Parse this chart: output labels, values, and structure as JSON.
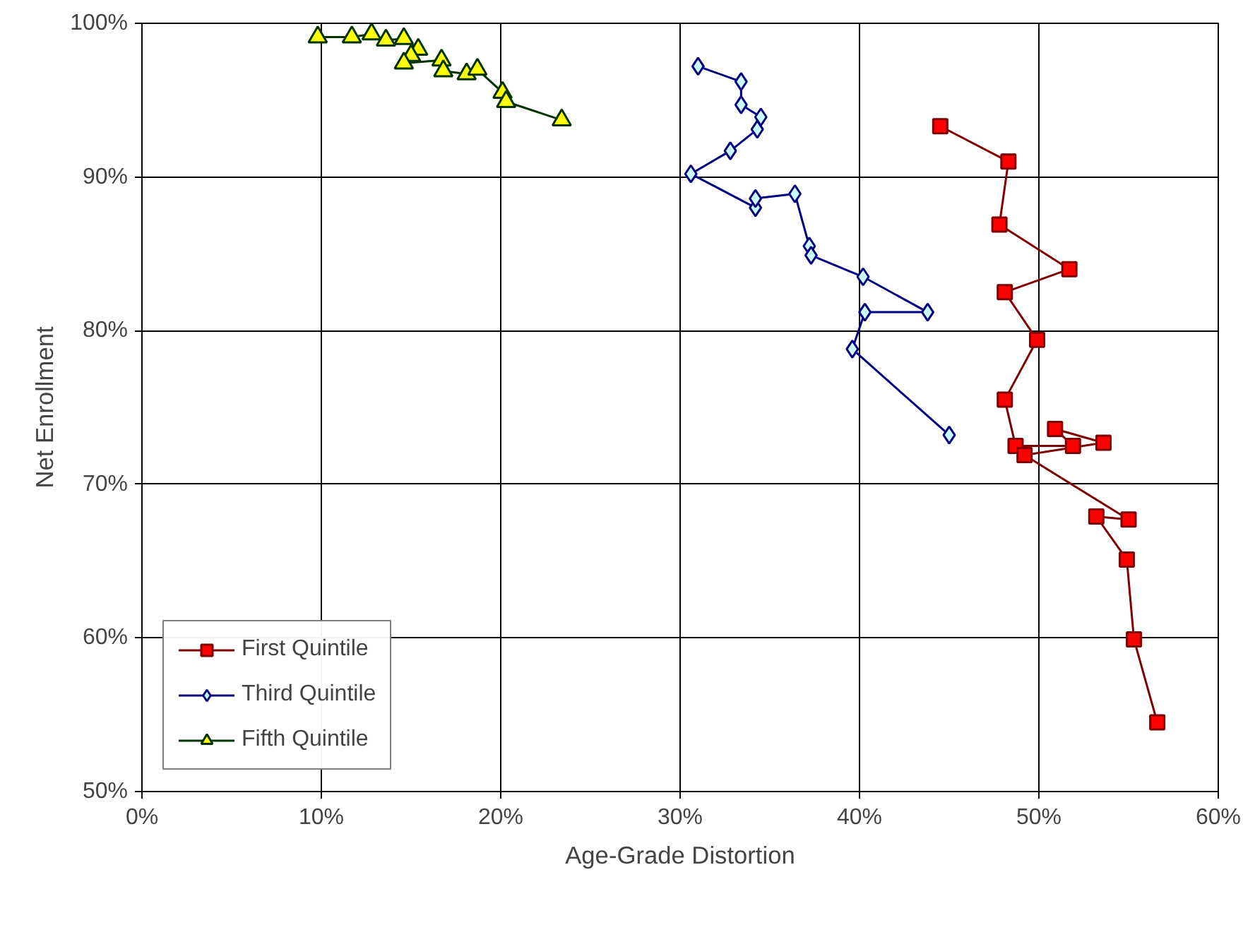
{
  "chart_data": {
    "type": "line",
    "xlabel": "Age-Grade Distortion",
    "ylabel": "Net Enrollment",
    "xlim": [
      0,
      60
    ],
    "ylim": [
      50,
      100
    ],
    "xticks": [
      {
        "value": 0,
        "label": "0%"
      },
      {
        "value": 10,
        "label": "10%"
      },
      {
        "value": 20,
        "label": "20%"
      },
      {
        "value": 30,
        "label": "30%"
      },
      {
        "value": 40,
        "label": "40%"
      },
      {
        "value": 50,
        "label": "50%"
      },
      {
        "value": 60,
        "label": "60%"
      }
    ],
    "yticks": [
      {
        "value": 50,
        "label": "50%"
      },
      {
        "value": 60,
        "label": "60%"
      },
      {
        "value": 70,
        "label": "70%"
      },
      {
        "value": 80,
        "label": "80%"
      },
      {
        "value": 90,
        "label": "90%"
      },
      {
        "value": 100,
        "label": "100%"
      }
    ],
    "grid": true,
    "legend": "bottom left",
    "series": [
      {
        "name": "First Quintile",
        "color": "#800000",
        "marker": "square",
        "x": [
          44.5,
          48.3,
          47.8,
          51.7,
          48.1,
          49.9,
          48.1,
          48.7,
          51.9,
          50.9,
          53.6,
          49.2,
          55.0,
          53.2,
          54.9,
          55.3,
          56.6
        ],
        "values": [
          93.3,
          91.0,
          86.9,
          84.0,
          82.5,
          79.4,
          75.5,
          72.5,
          72.5,
          73.6,
          72.7,
          71.9,
          67.7,
          67.9,
          65.1,
          59.9,
          54.5
        ]
      },
      {
        "name": "Third Quintile",
        "color": "#000080",
        "marker": "diamond",
        "x": [
          31.0,
          33.4,
          33.4,
          34.5,
          34.3,
          32.8,
          30.6,
          34.2,
          34.2,
          36.4,
          37.2,
          37.3,
          40.2,
          43.8,
          40.3,
          39.6,
          45.0
        ],
        "values": [
          97.2,
          96.2,
          94.7,
          93.9,
          93.1,
          91.7,
          90.2,
          88.0,
          88.6,
          88.9,
          85.5,
          84.9,
          83.5,
          81.2,
          81.2,
          78.8,
          73.2
        ]
      },
      {
        "name": "Fifth Quintile",
        "color": "#003300",
        "marker": "triangle",
        "x": [
          9.8,
          11.7,
          12.8,
          13.6,
          14.6,
          15.4,
          15.0,
          14.6,
          16.7,
          16.8,
          18.1,
          18.7,
          20.1,
          20.3,
          23.4
        ],
        "values": [
          99.1,
          99.1,
          99.3,
          98.9,
          99.0,
          98.3,
          97.9,
          97.4,
          97.6,
          96.9,
          96.7,
          97.0,
          95.5,
          94.9,
          93.7
        ]
      }
    ]
  }
}
